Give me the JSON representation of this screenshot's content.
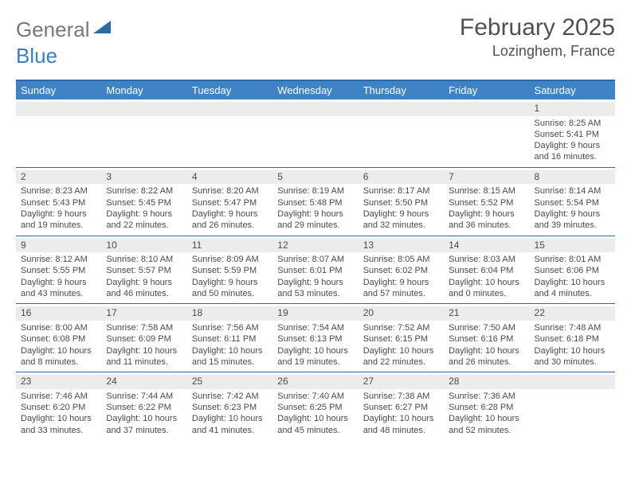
{
  "logo": {
    "part1": "General",
    "part2": "Blue"
  },
  "header": {
    "title": "February 2025",
    "location": "Lozinghem, France"
  },
  "colors": {
    "header_bg": "#3f83c4",
    "border": "#2f6aa8",
    "shade": "#ececec",
    "text": "#4a4a4a",
    "logo_grey": "#787878",
    "logo_blue": "#3a80c0"
  },
  "weekdays": [
    "Sunday",
    "Monday",
    "Tuesday",
    "Wednesday",
    "Thursday",
    "Friday",
    "Saturday"
  ],
  "weeks": [
    [
      null,
      null,
      null,
      null,
      null,
      null,
      {
        "n": "1",
        "sr": "Sunrise: 8:25 AM",
        "ss": "Sunset: 5:41 PM",
        "dl1": "Daylight: 9 hours",
        "dl2": "and 16 minutes."
      }
    ],
    [
      {
        "n": "2",
        "sr": "Sunrise: 8:23 AM",
        "ss": "Sunset: 5:43 PM",
        "dl1": "Daylight: 9 hours",
        "dl2": "and 19 minutes."
      },
      {
        "n": "3",
        "sr": "Sunrise: 8:22 AM",
        "ss": "Sunset: 5:45 PM",
        "dl1": "Daylight: 9 hours",
        "dl2": "and 22 minutes."
      },
      {
        "n": "4",
        "sr": "Sunrise: 8:20 AM",
        "ss": "Sunset: 5:47 PM",
        "dl1": "Daylight: 9 hours",
        "dl2": "and 26 minutes."
      },
      {
        "n": "5",
        "sr": "Sunrise: 8:19 AM",
        "ss": "Sunset: 5:48 PM",
        "dl1": "Daylight: 9 hours",
        "dl2": "and 29 minutes."
      },
      {
        "n": "6",
        "sr": "Sunrise: 8:17 AM",
        "ss": "Sunset: 5:50 PM",
        "dl1": "Daylight: 9 hours",
        "dl2": "and 32 minutes."
      },
      {
        "n": "7",
        "sr": "Sunrise: 8:15 AM",
        "ss": "Sunset: 5:52 PM",
        "dl1": "Daylight: 9 hours",
        "dl2": "and 36 minutes."
      },
      {
        "n": "8",
        "sr": "Sunrise: 8:14 AM",
        "ss": "Sunset: 5:54 PM",
        "dl1": "Daylight: 9 hours",
        "dl2": "and 39 minutes."
      }
    ],
    [
      {
        "n": "9",
        "sr": "Sunrise: 8:12 AM",
        "ss": "Sunset: 5:55 PM",
        "dl1": "Daylight: 9 hours",
        "dl2": "and 43 minutes."
      },
      {
        "n": "10",
        "sr": "Sunrise: 8:10 AM",
        "ss": "Sunset: 5:57 PM",
        "dl1": "Daylight: 9 hours",
        "dl2": "and 46 minutes."
      },
      {
        "n": "11",
        "sr": "Sunrise: 8:09 AM",
        "ss": "Sunset: 5:59 PM",
        "dl1": "Daylight: 9 hours",
        "dl2": "and 50 minutes."
      },
      {
        "n": "12",
        "sr": "Sunrise: 8:07 AM",
        "ss": "Sunset: 6:01 PM",
        "dl1": "Daylight: 9 hours",
        "dl2": "and 53 minutes."
      },
      {
        "n": "13",
        "sr": "Sunrise: 8:05 AM",
        "ss": "Sunset: 6:02 PM",
        "dl1": "Daylight: 9 hours",
        "dl2": "and 57 minutes."
      },
      {
        "n": "14",
        "sr": "Sunrise: 8:03 AM",
        "ss": "Sunset: 6:04 PM",
        "dl1": "Daylight: 10 hours",
        "dl2": "and 0 minutes."
      },
      {
        "n": "15",
        "sr": "Sunrise: 8:01 AM",
        "ss": "Sunset: 6:06 PM",
        "dl1": "Daylight: 10 hours",
        "dl2": "and 4 minutes."
      }
    ],
    [
      {
        "n": "16",
        "sr": "Sunrise: 8:00 AM",
        "ss": "Sunset: 6:08 PM",
        "dl1": "Daylight: 10 hours",
        "dl2": "and 8 minutes."
      },
      {
        "n": "17",
        "sr": "Sunrise: 7:58 AM",
        "ss": "Sunset: 6:09 PM",
        "dl1": "Daylight: 10 hours",
        "dl2": "and 11 minutes."
      },
      {
        "n": "18",
        "sr": "Sunrise: 7:56 AM",
        "ss": "Sunset: 6:11 PM",
        "dl1": "Daylight: 10 hours",
        "dl2": "and 15 minutes."
      },
      {
        "n": "19",
        "sr": "Sunrise: 7:54 AM",
        "ss": "Sunset: 6:13 PM",
        "dl1": "Daylight: 10 hours",
        "dl2": "and 19 minutes."
      },
      {
        "n": "20",
        "sr": "Sunrise: 7:52 AM",
        "ss": "Sunset: 6:15 PM",
        "dl1": "Daylight: 10 hours",
        "dl2": "and 22 minutes."
      },
      {
        "n": "21",
        "sr": "Sunrise: 7:50 AM",
        "ss": "Sunset: 6:16 PM",
        "dl1": "Daylight: 10 hours",
        "dl2": "and 26 minutes."
      },
      {
        "n": "22",
        "sr": "Sunrise: 7:48 AM",
        "ss": "Sunset: 6:18 PM",
        "dl1": "Daylight: 10 hours",
        "dl2": "and 30 minutes."
      }
    ],
    [
      {
        "n": "23",
        "sr": "Sunrise: 7:46 AM",
        "ss": "Sunset: 6:20 PM",
        "dl1": "Daylight: 10 hours",
        "dl2": "and 33 minutes."
      },
      {
        "n": "24",
        "sr": "Sunrise: 7:44 AM",
        "ss": "Sunset: 6:22 PM",
        "dl1": "Daylight: 10 hours",
        "dl2": "and 37 minutes."
      },
      {
        "n": "25",
        "sr": "Sunrise: 7:42 AM",
        "ss": "Sunset: 6:23 PM",
        "dl1": "Daylight: 10 hours",
        "dl2": "and 41 minutes."
      },
      {
        "n": "26",
        "sr": "Sunrise: 7:40 AM",
        "ss": "Sunset: 6:25 PM",
        "dl1": "Daylight: 10 hours",
        "dl2": "and 45 minutes."
      },
      {
        "n": "27",
        "sr": "Sunrise: 7:38 AM",
        "ss": "Sunset: 6:27 PM",
        "dl1": "Daylight: 10 hours",
        "dl2": "and 48 minutes."
      },
      {
        "n": "28",
        "sr": "Sunrise: 7:36 AM",
        "ss": "Sunset: 6:28 PM",
        "dl1": "Daylight: 10 hours",
        "dl2": "and 52 minutes."
      },
      null
    ]
  ]
}
